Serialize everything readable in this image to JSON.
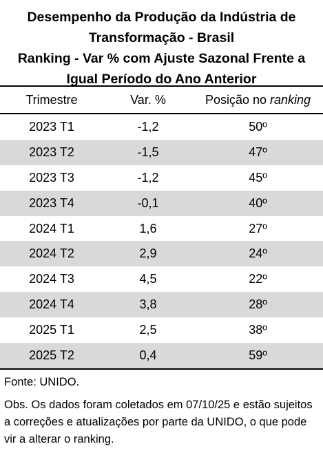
{
  "title": {
    "line1": "Desempenho da Produção da Indústria de",
    "line2": "Transformação - Brasil",
    "line3": "Ranking - Var % com Ajuste Sazonal Frente a",
    "line4": "Igual Período do Ano Anterior"
  },
  "table": {
    "headers": {
      "trimestre": "Trimestre",
      "var": "Var. %",
      "posicao_prefix": "Posição no ",
      "posicao_italic": "ranking"
    },
    "rows": [
      {
        "trimestre": "2023 T1",
        "var": "-1,2",
        "posicao": "50º"
      },
      {
        "trimestre": "2023 T2",
        "var": "-1,5",
        "posicao": "47º"
      },
      {
        "trimestre": "2023 T3",
        "var": "-1,2",
        "posicao": "45º"
      },
      {
        "trimestre": "2023 T4",
        "var": "-0,1",
        "posicao": "40º"
      },
      {
        "trimestre": "2024 T1",
        "var": "1,6",
        "posicao": "27º"
      },
      {
        "trimestre": "2024 T2",
        "var": "2,9",
        "posicao": "24º"
      },
      {
        "trimestre": "2024 T3",
        "var": "4,5",
        "posicao": "22º"
      },
      {
        "trimestre": "2024 T4",
        "var": "3,8",
        "posicao": "28º"
      },
      {
        "trimestre": "2025 T1",
        "var": "2,5",
        "posicao": "38º"
      },
      {
        "trimestre": "2025 T2",
        "var": "0,4",
        "posicao": "59º"
      }
    ]
  },
  "footer": {
    "fonte": "Fonte: UNIDO.",
    "obs": "Obs. Os dados foram coletados em 07/10/25 e estão sujeitos a correções e atualizações por parte da UNIDO, o que pode vir a alterar o ranking."
  }
}
